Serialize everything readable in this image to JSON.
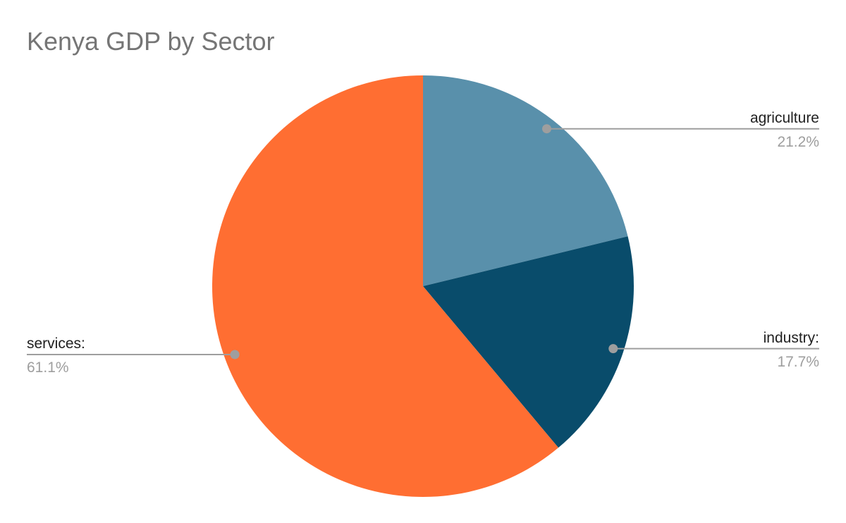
{
  "page": {
    "background_color": "#ffffff"
  },
  "chart_data": {
    "type": "pie",
    "title": "Kenya GDP by Sector",
    "title_color": "#757575",
    "start_position": "12-oclock",
    "direction": "clockwise",
    "legend_position": "labeled-callouts",
    "leader_line_color": "#9e9e9e",
    "label_text_color": "#212121",
    "value_text_color": "#9e9e9e",
    "slices": [
      {
        "label": "agriculture",
        "value": 21.2,
        "value_label": "21.2%",
        "color": "#5990ab"
      },
      {
        "label": "industry:",
        "value": 17.7,
        "value_label": "17.7%",
        "color": "#094c6b"
      },
      {
        "label": "services:",
        "value": 61.1,
        "value_label": "61.1%",
        "color": "#ff6e32"
      }
    ]
  }
}
